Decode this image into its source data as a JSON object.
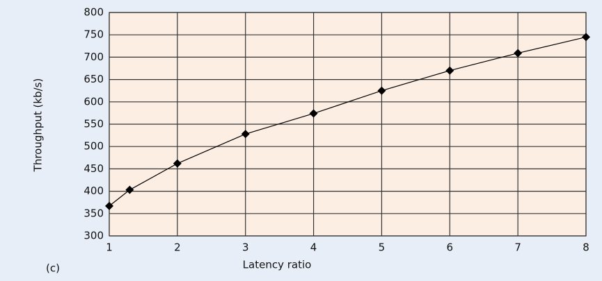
{
  "chart_data": {
    "type": "line",
    "xlabel": "Latency ratio",
    "ylabel": "Throughput (kb/s)",
    "annotation": "(c)",
    "x": [
      1,
      1.3,
      2,
      3,
      4,
      5,
      6,
      7,
      8
    ],
    "series": [
      {
        "name": null,
        "color": "#000000",
        "values": [
          367,
          403,
          462,
          528,
          574,
          625,
          670,
          709,
          745
        ]
      }
    ],
    "xlim": [
      1,
      8
    ],
    "xticks": [
      1,
      2,
      3,
      4,
      5,
      6,
      7,
      8
    ],
    "ylim": [
      300,
      800
    ],
    "yticks": [
      300,
      350,
      400,
      450,
      500,
      550,
      600,
      650,
      700,
      750,
      800
    ],
    "grid": true,
    "plot_background": "#fdeee3"
  }
}
